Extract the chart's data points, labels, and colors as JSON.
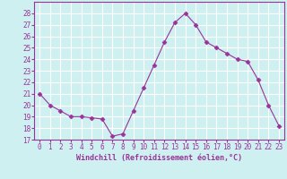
{
  "x": [
    0,
    1,
    2,
    3,
    4,
    5,
    6,
    7,
    8,
    9,
    10,
    11,
    12,
    13,
    14,
    15,
    16,
    17,
    18,
    19,
    20,
    21,
    22,
    23
  ],
  "y": [
    21,
    20,
    19.5,
    19,
    19,
    18.9,
    18.8,
    17.3,
    17.5,
    19.5,
    21.5,
    23.5,
    25.5,
    27.2,
    28,
    27,
    25.5,
    25,
    24.5,
    24,
    23.8,
    22.2,
    20,
    18.2
  ],
  "line_color": "#993399",
  "marker": "D",
  "marker_size": 2.5,
  "bg_color": "#cff0f0",
  "grid_color": "#ffffff",
  "xlabel": "Windchill (Refroidissement éolien,°C)",
  "xlabel_color": "#993399",
  "tick_color": "#993399",
  "ylim": [
    17,
    29
  ],
  "xlim": [
    -0.5,
    23.5
  ],
  "yticks": [
    17,
    18,
    19,
    20,
    21,
    22,
    23,
    24,
    25,
    26,
    27,
    28
  ],
  "xticks": [
    0,
    1,
    2,
    3,
    4,
    5,
    6,
    7,
    8,
    9,
    10,
    11,
    12,
    13,
    14,
    15,
    16,
    17,
    18,
    19,
    20,
    21,
    22,
    23
  ]
}
